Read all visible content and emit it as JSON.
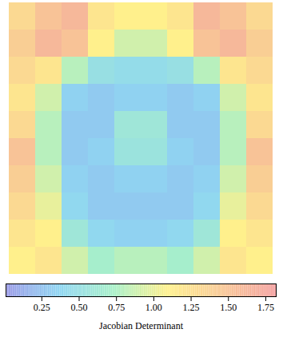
{
  "chart_data": {
    "type": "heatmap",
    "cells": [
      [
        1.3,
        1.5,
        1.6,
        1.2,
        1.1,
        1.1,
        1.2,
        1.6,
        1.5,
        1.3
      ],
      [
        1.4,
        1.6,
        1.5,
        1.1,
        0.9,
        0.9,
        1.1,
        1.5,
        1.6,
        1.4
      ],
      [
        1.3,
        1.2,
        0.8,
        0.5,
        0.45,
        0.45,
        0.5,
        0.8,
        1.2,
        1.3
      ],
      [
        1.2,
        0.9,
        0.35,
        0.3,
        0.35,
        0.35,
        0.3,
        0.35,
        0.9,
        1.2
      ],
      [
        1.3,
        0.8,
        0.3,
        0.3,
        0.6,
        0.6,
        0.3,
        0.3,
        0.8,
        1.3
      ],
      [
        1.5,
        0.8,
        0.3,
        0.35,
        0.55,
        0.55,
        0.35,
        0.3,
        0.8,
        1.5
      ],
      [
        1.4,
        0.9,
        0.35,
        0.3,
        0.35,
        0.35,
        0.3,
        0.35,
        0.9,
        1.4
      ],
      [
        1.3,
        1.0,
        0.4,
        0.3,
        0.3,
        0.3,
        0.3,
        0.4,
        1.0,
        1.3
      ],
      [
        1.2,
        1.1,
        0.6,
        0.4,
        0.35,
        0.35,
        0.4,
        0.6,
        1.1,
        1.2
      ],
      [
        1.1,
        1.2,
        0.9,
        0.7,
        0.8,
        0.8,
        0.7,
        0.9,
        1.2,
        1.1
      ]
    ],
    "colorbar_label": "Jacobian Determinant",
    "colorbar_range": [
      0.01,
      1.82
    ],
    "colorbar_ticks": [
      {
        "value": 0.25,
        "label": "0.25"
      },
      {
        "value": 0.5,
        "label": "0.50"
      },
      {
        "value": 0.75,
        "label": "0.75"
      },
      {
        "value": 1.0,
        "label": "1.00"
      },
      {
        "value": 1.25,
        "label": "1.25"
      },
      {
        "value": 1.5,
        "label": "1.50"
      },
      {
        "value": 1.75,
        "label": "1.75"
      }
    ],
    "tick_labels": false
  }
}
